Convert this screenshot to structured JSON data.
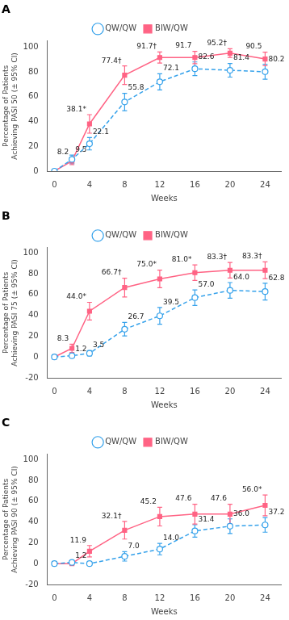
{
  "chart_data": [
    {
      "type": "line",
      "title": "A",
      "xlabel": "Weeks",
      "ylabel": "Percentage of Patients\nAchieving PASI 50 (± 95% CI)",
      "x": [
        0,
        2,
        4,
        8,
        12,
        16,
        20,
        24
      ],
      "xlim": [
        -0.8,
        25.8
      ],
      "xticks": [
        0,
        4,
        8,
        12,
        16,
        20,
        24
      ],
      "ylim": [
        0,
        105
      ],
      "yticks": [
        0,
        20,
        40,
        60,
        80,
        100
      ],
      "grid": false,
      "legend": "top",
      "data_labels": true,
      "series": [
        {
          "name": "QW/QW",
          "marker": "open_circle",
          "line_style": "dashed",
          "values": [
            0,
            9.5,
            22.1,
            55.8,
            72.1,
            82.6,
            81.4,
            80.2
          ],
          "errors": [
            0,
            3.5,
            5.0,
            7.0,
            6.5,
            5.5,
            5.5,
            6.0
          ],
          "value_labels": [
            null,
            "9.5",
            "22.1",
            "55.8",
            "72.1",
            "82.6",
            "81.4",
            "80.2"
          ]
        },
        {
          "name": "BIW/QW",
          "marker": "square",
          "line_style": "solid",
          "values": [
            0,
            8.2,
            38.1,
            77.4,
            91.7,
            91.7,
            95.2,
            90.5
          ],
          "errors": [
            0,
            3.0,
            7.5,
            7.5,
            4.5,
            5.0,
            3.5,
            5.5
          ],
          "value_labels": [
            null,
            "8.2",
            "38.1*",
            "77.4†",
            "91.7†",
            "91.7",
            "95.2†",
            "90.5"
          ]
        }
      ]
    },
    {
      "type": "line",
      "title": "B",
      "xlabel": "Weeks",
      "ylabel": "Percentage of Patients\nAchieving PASI 75 (± 95% CI)",
      "x": [
        0,
        2,
        4,
        8,
        12,
        16,
        20,
        24
      ],
      "xlim": [
        -0.8,
        25.8
      ],
      "xticks": [
        0,
        4,
        8,
        12,
        16,
        20,
        24
      ],
      "ylim": [
        -20,
        105
      ],
      "yticks": [
        -20,
        0,
        20,
        40,
        60,
        80,
        100
      ],
      "grid": false,
      "legend": "top",
      "data_labels": true,
      "series": [
        {
          "name": "QW/QW",
          "marker": "open_circle",
          "line_style": "dashed",
          "values": [
            0,
            1.2,
            3.5,
            26.7,
            39.5,
            57.0,
            64.0,
            62.8
          ],
          "errors": [
            0,
            1.5,
            2.5,
            6.5,
            8.0,
            7.5,
            7.5,
            8.0
          ],
          "value_labels": [
            null,
            "1.2",
            "3.5",
            "26.7",
            "39.5",
            "57.0",
            "64.0",
            "62.8"
          ]
        },
        {
          "name": "BIW/QW",
          "marker": "square",
          "line_style": "solid",
          "values": [
            0,
            8.3,
            44.0,
            66.7,
            75.0,
            81.0,
            83.3,
            83.3
          ],
          "errors": [
            0,
            4.0,
            8.5,
            9.0,
            8.5,
            7.5,
            7.5,
            8.0
          ],
          "value_labels": [
            null,
            "8.3",
            "44.0*",
            "66.7†",
            "75.0*",
            "81.0*",
            "83.3†",
            "83.3†"
          ]
        }
      ]
    },
    {
      "type": "line",
      "title": "C",
      "xlabel": "Weeks",
      "ylabel": "Percentage of Patients\nAchieving PASI 90 (± 95% CI)",
      "x": [
        0,
        2,
        4,
        8,
        12,
        16,
        20,
        24
      ],
      "xlim": [
        -0.8,
        25.8
      ],
      "xticks": [
        0,
        4,
        8,
        12,
        16,
        20,
        24
      ],
      "ylim": [
        -20,
        105
      ],
      "yticks": [
        -20,
        0,
        20,
        40,
        60,
        80,
        100
      ],
      "grid": false,
      "legend": "top",
      "data_labels": true,
      "series": [
        {
          "name": "QW/QW",
          "marker": "open_circle",
          "line_style": "dashed",
          "values": [
            0,
            1.2,
            0,
            7.0,
            14.0,
            31.4,
            36.0,
            37.2
          ],
          "errors": [
            0,
            1.5,
            0,
            4.5,
            5.5,
            6.0,
            7.0,
            7.0
          ],
          "value_labels": [
            null,
            "1.2",
            null,
            "7.0",
            "14.0",
            "31.4",
            "36.0",
            "37.2"
          ]
        },
        {
          "name": "BIW/QW",
          "marker": "square",
          "line_style": "solid",
          "values": [
            0,
            0,
            11.9,
            32.1,
            45.2,
            47.6,
            47.6,
            56.0
          ],
          "errors": [
            0,
            0,
            5.5,
            8.5,
            9.0,
            9.5,
            9.5,
            10.0
          ],
          "value_labels": [
            null,
            null,
            "11.9",
            "32.1†",
            "45.2",
            "47.6",
            "47.6",
            "56.0*"
          ]
        }
      ]
    }
  ]
}
